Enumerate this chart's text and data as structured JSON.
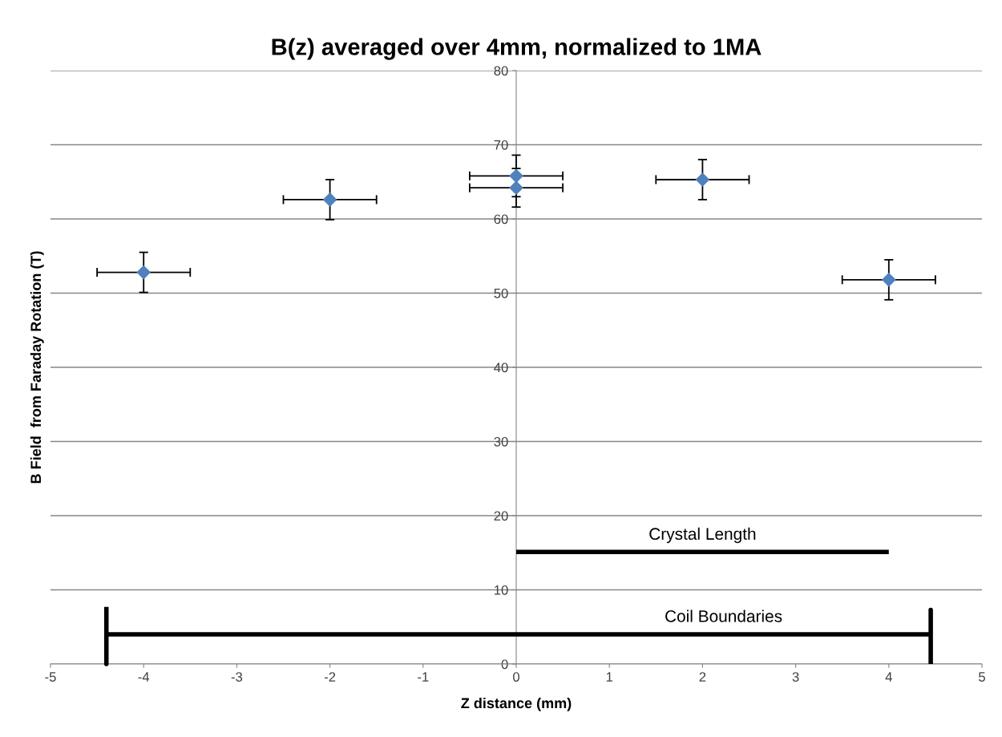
{
  "chart_data": {
    "type": "scatter",
    "title": "B(z) averaged over 4mm, normalized to 1MA",
    "xlabel": "Z distance (mm)",
    "ylabel": "B Field  from Faraday Rotation (T)",
    "series": [
      {
        "color": "#4f81bd",
        "marker": "diamond",
        "x": [
          -4,
          -2,
          0,
          0,
          2,
          4
        ],
        "values": [
          52.8,
          62.6,
          65.8,
          64.2,
          65.3,
          51.8
        ],
        "errors": [
          2.7,
          2.7,
          2.8,
          2.6,
          2.7,
          2.7
        ],
        "xerrors": [
          0.5,
          0.5,
          0.5,
          0.5,
          0.5,
          0.5
        ]
      },
      {
        "type": "line",
        "name": "Crystal Length",
        "color": "#000000",
        "marker": "none",
        "x": [
          0,
          4
        ],
        "values": [
          15.1,
          15.1
        ]
      },
      {
        "type": "line",
        "name": "Coil Boundaries",
        "color": "#000000",
        "marker": "none",
        "x": [
          -4.4,
          -4.4,
          -4.4,
          4.45,
          4.45,
          4.45
        ],
        "values": [
          7.7,
          0,
          4,
          4,
          7.3,
          0
        ]
      }
    ],
    "xlim": [
      -5,
      5
    ],
    "xticks": [
      -5,
      -4,
      -3,
      -2,
      -1,
      0,
      1,
      2,
      3,
      4,
      5
    ],
    "ylim": [
      0,
      80
    ],
    "yticks": [
      0,
      10,
      20,
      30,
      40,
      50,
      60,
      70,
      80
    ],
    "grid": "y",
    "legend": false
  }
}
